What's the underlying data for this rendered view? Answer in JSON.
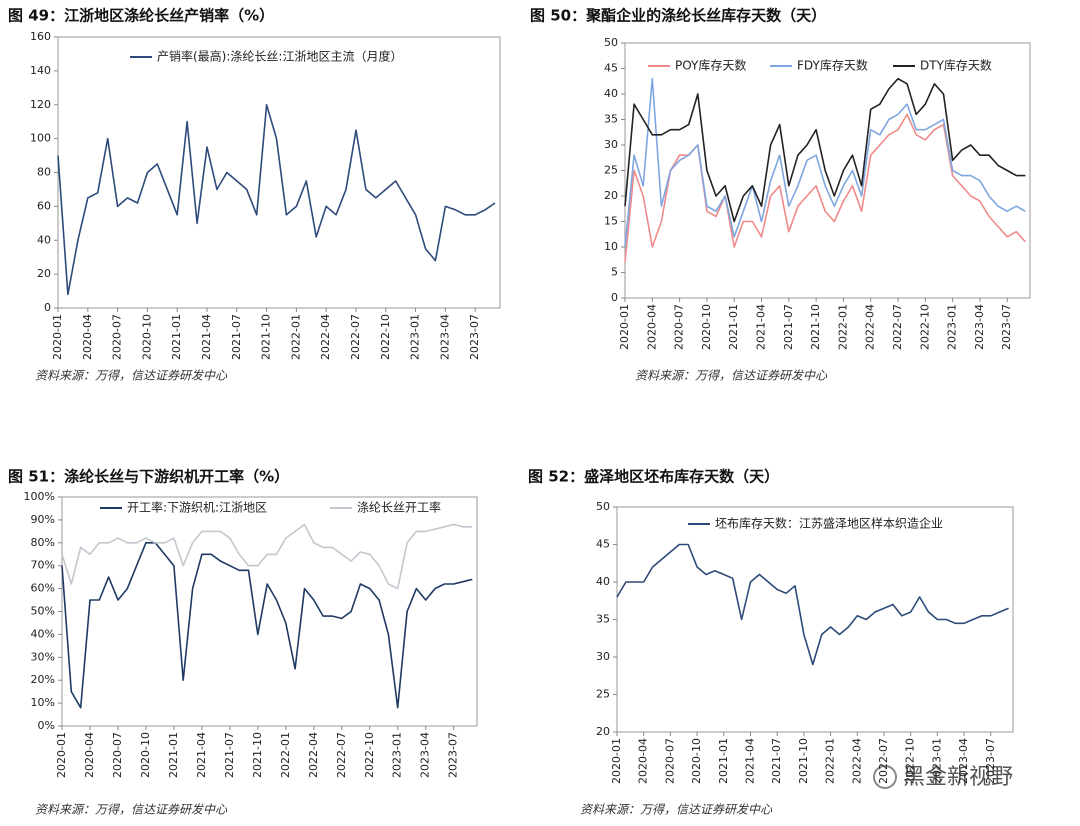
{
  "chart_data": [
    {
      "type": "line",
      "title": "图 49：江浙地区涤纶长丝产销率（%）",
      "source": "资料来源：万得，信达证券研发中心",
      "x": [
        "2020-01",
        "2020-02",
        "2020-03",
        "2020-04",
        "2020-05",
        "2020-06",
        "2020-07",
        "2020-08",
        "2020-09",
        "2020-10",
        "2020-11",
        "2020-12",
        "2021-01",
        "2021-02",
        "2021-03",
        "2021-04",
        "2021-05",
        "2021-06",
        "2021-07",
        "2021-08",
        "2021-09",
        "2021-10",
        "2021-11",
        "2021-12",
        "2022-01",
        "2022-02",
        "2022-03",
        "2022-04",
        "2022-05",
        "2022-06",
        "2022-07",
        "2022-08",
        "2022-09",
        "2022-10",
        "2022-11",
        "2022-12",
        "2023-01",
        "2023-02",
        "2023-03",
        "2023-04",
        "2023-05",
        "2023-06",
        "2023-07",
        "2023-08",
        "2023-09"
      ],
      "xticks": [
        "2020-01",
        "2020-04",
        "2020-07",
        "2020-10",
        "2021-01",
        "2021-04",
        "2021-07",
        "2021-10",
        "2022-01",
        "2022-04",
        "2022-07",
        "2022-10",
        "2023-01",
        "2023-04",
        "2023-07"
      ],
      "ylim": [
        0,
        160
      ],
      "yticks": [
        0,
        20,
        40,
        60,
        80,
        100,
        120,
        140,
        160
      ],
      "series": [
        {
          "name": "产销率(最高):涤纶长丝:江浙地区主流（月度）",
          "color": "#2e4a7a",
          "values": [
            90,
            8,
            40,
            65,
            68,
            100,
            60,
            65,
            62,
            80,
            85,
            70,
            55,
            110,
            50,
            95,
            70,
            80,
            75,
            70,
            55,
            120,
            100,
            55,
            60,
            75,
            42,
            60,
            55,
            70,
            105,
            70,
            65,
            70,
            75,
            65,
            55,
            35,
            28,
            60,
            58,
            55,
            55,
            58,
            62
          ]
        }
      ]
    },
    {
      "type": "line",
      "title": "图 50：聚酯企业的涤纶长丝库存天数（天）",
      "source": "资料来源：万得，信达证券研发中心",
      "x": [
        "2020-01",
        "2020-02",
        "2020-03",
        "2020-04",
        "2020-05",
        "2020-06",
        "2020-07",
        "2020-08",
        "2020-09",
        "2020-10",
        "2020-11",
        "2020-12",
        "2021-01",
        "2021-02",
        "2021-03",
        "2021-04",
        "2021-05",
        "2021-06",
        "2021-07",
        "2021-08",
        "2021-09",
        "2021-10",
        "2021-11",
        "2021-12",
        "2022-01",
        "2022-02",
        "2022-03",
        "2022-04",
        "2022-05",
        "2022-06",
        "2022-07",
        "2022-08",
        "2022-09",
        "2022-10",
        "2022-11",
        "2022-12",
        "2023-01",
        "2023-02",
        "2023-03",
        "2023-04",
        "2023-05",
        "2023-06",
        "2023-07",
        "2023-08",
        "2023-09"
      ],
      "xticks": [
        "2020-01",
        "2020-04",
        "2020-07",
        "2020-10",
        "2021-01",
        "2021-04",
        "2021-07",
        "2021-10",
        "2022-01",
        "2022-04",
        "2022-07",
        "2022-10",
        "2023-01",
        "2023-04",
        "2023-07"
      ],
      "ylim": [
        0,
        50
      ],
      "yticks": [
        0,
        5,
        10,
        15,
        20,
        25,
        30,
        35,
        40,
        45,
        50
      ],
      "series": [
        {
          "name": "POY库存天数",
          "color": "#f08a8a",
          "values": [
            7,
            25,
            20,
            10,
            15,
            25,
            28,
            28,
            30,
            17,
            16,
            20,
            10,
            15,
            15,
            12,
            20,
            22,
            13,
            18,
            20,
            22,
            17,
            15,
            19,
            22,
            17,
            28,
            30,
            32,
            33,
            36,
            32,
            31,
            33,
            34,
            24,
            22,
            20,
            19,
            16,
            14,
            12,
            13,
            11
          ]
        },
        {
          "name": "FDY库存天数",
          "color": "#7ea6e0",
          "values": [
            10,
            28,
            22,
            43,
            18,
            25,
            27,
            28,
            30,
            18,
            17,
            20,
            12,
            17,
            22,
            15,
            23,
            28,
            18,
            22,
            27,
            28,
            22,
            18,
            22,
            25,
            20,
            33,
            32,
            35,
            36,
            38,
            33,
            33,
            34,
            35,
            25,
            24,
            24,
            23,
            20,
            18,
            17,
            18,
            17
          ]
        },
        {
          "name": "DTY库存天数",
          "color": "#222222",
          "values": [
            18,
            38,
            35,
            32,
            32,
            33,
            33,
            34,
            40,
            25,
            20,
            22,
            15,
            20,
            22,
            18,
            30,
            34,
            22,
            28,
            30,
            33,
            25,
            20,
            25,
            28,
            22,
            37,
            38,
            41,
            43,
            42,
            36,
            38,
            42,
            40,
            27,
            29,
            30,
            28,
            28,
            26,
            25,
            24,
            24
          ]
        }
      ]
    },
    {
      "type": "line",
      "title": "图 51：涤纶长丝与下游织机开工率（%）",
      "source": "资料来源：万得，信达证券研发中心",
      "x": [
        "2020-01",
        "2020-02",
        "2020-03",
        "2020-04",
        "2020-05",
        "2020-06",
        "2020-07",
        "2020-08",
        "2020-09",
        "2020-10",
        "2020-11",
        "2020-12",
        "2021-01",
        "2021-02",
        "2021-03",
        "2021-04",
        "2021-05",
        "2021-06",
        "2021-07",
        "2021-08",
        "2021-09",
        "2021-10",
        "2021-11",
        "2021-12",
        "2022-01",
        "2022-02",
        "2022-03",
        "2022-04",
        "2022-05",
        "2022-06",
        "2022-07",
        "2022-08",
        "2022-09",
        "2022-10",
        "2022-11",
        "2022-12",
        "2023-01",
        "2023-02",
        "2023-03",
        "2023-04",
        "2023-05",
        "2023-06",
        "2023-07",
        "2023-08",
        "2023-09"
      ],
      "xticks": [
        "2020-01",
        "2020-04",
        "2020-07",
        "2020-10",
        "2021-01",
        "2021-04",
        "2021-07",
        "2021-10",
        "2022-01",
        "2022-04",
        "2022-07",
        "2022-10",
        "2023-01",
        "2023-04",
        "2023-07"
      ],
      "ylim": [
        0,
        100
      ],
      "yticks": [
        {
          "value": 0,
          "label": "0%"
        },
        {
          "value": 10,
          "label": "10%"
        },
        {
          "value": 20,
          "label": "20%"
        },
        {
          "value": 30,
          "label": "30%"
        },
        {
          "value": 40,
          "label": "40%"
        },
        {
          "value": 50,
          "label": "50%"
        },
        {
          "value": 60,
          "label": "60%"
        },
        {
          "value": 70,
          "label": "70%"
        },
        {
          "value": 80,
          "label": "80%"
        },
        {
          "value": 90,
          "label": "90%"
        },
        {
          "value": 100,
          "label": "100%"
        }
      ],
      "series": [
        {
          "name": "开工率:下游织机:江浙地区",
          "color": "#1f3864",
          "values": [
            70,
            15,
            8,
            55,
            55,
            65,
            55,
            60,
            70,
            80,
            80,
            75,
            70,
            20,
            60,
            75,
            75,
            72,
            70,
            68,
            68,
            40,
            62,
            55,
            45,
            25,
            60,
            55,
            48,
            48,
            47,
            50,
            62,
            60,
            55,
            40,
            8,
            50,
            60,
            55,
            60,
            62,
            62,
            63,
            64
          ]
        },
        {
          "name": "涤纶长丝开工率",
          "color": "#c3c7cf",
          "values": [
            75,
            62,
            78,
            75,
            80,
            80,
            82,
            80,
            80,
            82,
            80,
            80,
            82,
            70,
            80,
            85,
            85,
            85,
            82,
            75,
            70,
            70,
            75,
            75,
            82,
            85,
            88,
            80,
            78,
            78,
            75,
            72,
            76,
            75,
            70,
            62,
            60,
            80,
            85,
            85,
            86,
            87,
            88,
            87,
            87
          ]
        }
      ]
    },
    {
      "type": "line",
      "title": "图 52：盛泽地区坯布库存天数（天）",
      "source": "资料来源：万得，信达证券研发中心",
      "x": [
        "2020-01",
        "2020-02",
        "2020-03",
        "2020-04",
        "2020-05",
        "2020-06",
        "2020-07",
        "2020-08",
        "2020-09",
        "2020-10",
        "2020-11",
        "2020-12",
        "2021-01",
        "2021-02",
        "2021-03",
        "2021-04",
        "2021-05",
        "2021-06",
        "2021-07",
        "2021-08",
        "2021-09",
        "2021-10",
        "2021-11",
        "2021-12",
        "2022-01",
        "2022-02",
        "2022-03",
        "2022-04",
        "2022-05",
        "2022-06",
        "2022-07",
        "2022-08",
        "2022-09",
        "2022-10",
        "2022-11",
        "2022-12",
        "2023-01",
        "2023-02",
        "2023-03",
        "2023-04",
        "2023-05",
        "2023-06",
        "2023-07",
        "2023-08",
        "2023-09"
      ],
      "xticks": [
        "2020-01",
        "2020-04",
        "2020-07",
        "2020-10",
        "2021-01",
        "2021-04",
        "2021-07",
        "2021-10",
        "2022-01",
        "2022-04",
        "2022-07",
        "2022-10",
        "2023-01",
        "2023-04",
        "2023-07"
      ],
      "ylim": [
        20,
        50
      ],
      "yticks": [
        20,
        25,
        30,
        35,
        40,
        45,
        50
      ],
      "series": [
        {
          "name": "坯布库存天数：江苏盛泽地区样本织造企业",
          "color": "#2e4a7a",
          "values": [
            38,
            40,
            40,
            40,
            42,
            43,
            44,
            45,
            45,
            42,
            41,
            41.5,
            41,
            40.5,
            35,
            40,
            41,
            40,
            39,
            38.5,
            39.5,
            33,
            29,
            33,
            34,
            33,
            34,
            35.5,
            35,
            36,
            36.5,
            37,
            35.5,
            36,
            38,
            36,
            35,
            35,
            34.5,
            34.5,
            35,
            35.5,
            35.5,
            36,
            36.5
          ]
        }
      ]
    }
  ],
  "watermark": "黑金新视野"
}
